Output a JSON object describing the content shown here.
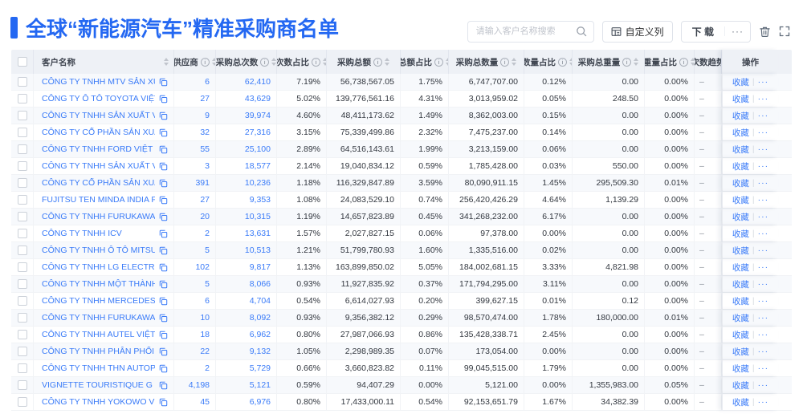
{
  "page": {
    "title": "全球“新能源汽车”精准采购商名单"
  },
  "toolbar": {
    "search_placeholder": "请输入客户名称搜索",
    "customize_columns": "自定义列",
    "download": "下 载",
    "more": "···",
    "icons": [
      "search-icon",
      "customize-columns-icon",
      "download-more-icon",
      "trash-icon",
      "fullscreen-icon"
    ]
  },
  "colors": {
    "accent": "#2468f2",
    "link": "#3a7bf8",
    "header_bg": "#eef1f6",
    "stripe": "#f7f9fc"
  },
  "table": {
    "columns": [
      {
        "key": "name",
        "label": "客户名称",
        "info": false,
        "sortable": true
      },
      {
        "key": "supplier",
        "label": "供应商",
        "info": true,
        "sortable": true
      },
      {
        "key": "times",
        "label": "采购总次数",
        "info": true,
        "sortable": true
      },
      {
        "key": "times_pct",
        "label": "次数占比",
        "info": true,
        "sortable": true
      },
      {
        "key": "amount",
        "label": "采购总额",
        "info": true,
        "sortable": true
      },
      {
        "key": "amount_pct",
        "label": "总额占比",
        "info": true,
        "sortable": true
      },
      {
        "key": "qty",
        "label": "采购总数量",
        "info": true,
        "sortable": true
      },
      {
        "key": "qty_pct",
        "label": "数量占比",
        "info": true,
        "sortable": true
      },
      {
        "key": "weight",
        "label": "采购总重量",
        "info": true,
        "sortable": true
      },
      {
        "key": "weight_pct",
        "label": "重量占比",
        "info": true,
        "sortable": true
      },
      {
        "key": "trend",
        "label": "次数趋势",
        "info": false,
        "sortable": false
      },
      {
        "key": "actions",
        "label": "操作",
        "info": false,
        "sortable": false
      }
    ],
    "trend_placeholder": "–",
    "actions": {
      "favorite": "收藏",
      "more": "···"
    },
    "rows": [
      {
        "name": "CÔNG TY TNHH MTV SẢN XUẤ...",
        "supplier": "6",
        "times": "62,410",
        "times_pct": "7.19%",
        "amount": "56,738,567.05",
        "amount_pct": "1.75%",
        "qty": "6,747,707.00",
        "qty_pct": "0.12%",
        "weight": "0.00",
        "weight_pct": "0.00%"
      },
      {
        "name": "CÔNG TY Ô TÔ TOYOTA VIỆT ...",
        "supplier": "27",
        "times": "43,629",
        "times_pct": "5.02%",
        "amount": "139,776,561.16",
        "amount_pct": "4.31%",
        "qty": "3,013,959.02",
        "qty_pct": "0.05%",
        "weight": "248.50",
        "weight_pct": "0.00%"
      },
      {
        "name": "CÔNG TY TNHH SẢN XUẤT VÀ ...",
        "supplier": "9",
        "times": "39,974",
        "times_pct": "4.60%",
        "amount": "48,411,173.62",
        "amount_pct": "1.49%",
        "qty": "8,362,003.00",
        "qty_pct": "0.15%",
        "weight": "0.00",
        "weight_pct": "0.00%"
      },
      {
        "name": "CÔNG TY CỔ PHẦN SẢN XUẤT...",
        "supplier": "32",
        "times": "27,316",
        "times_pct": "3.15%",
        "amount": "75,339,499.86",
        "amount_pct": "2.32%",
        "qty": "7,475,237.00",
        "qty_pct": "0.14%",
        "weight": "0.00",
        "weight_pct": "0.00%"
      },
      {
        "name": "CÔNG TY TNHH FORD VIỆT NAM",
        "supplier": "55",
        "times": "25,100",
        "times_pct": "2.89%",
        "amount": "64,516,143.61",
        "amount_pct": "1.99%",
        "qty": "3,213,159.00",
        "qty_pct": "0.06%",
        "weight": "0.00",
        "weight_pct": "0.00%"
      },
      {
        "name": "CÔNG TY TNHH SẢN XUẤT VÀ ...",
        "supplier": "3",
        "times": "18,577",
        "times_pct": "2.14%",
        "amount": "19,040,834.12",
        "amount_pct": "0.59%",
        "qty": "1,785,428.00",
        "qty_pct": "0.03%",
        "weight": "550.00",
        "weight_pct": "0.00%"
      },
      {
        "name": "CÔNG TY CỔ PHẦN SẢN XUẤT...",
        "supplier": "391",
        "times": "10,236",
        "times_pct": "1.18%",
        "amount": "116,329,847.89",
        "amount_pct": "3.59%",
        "qty": "80,090,911.15",
        "qty_pct": "1.45%",
        "weight": "295,509.30",
        "weight_pct": "0.01%"
      },
      {
        "name": "FUJITSU TEN MINDA INDIA PVT...",
        "supplier": "27",
        "times": "9,353",
        "times_pct": "1.08%",
        "amount": "24,083,529.10",
        "amount_pct": "0.74%",
        "qty": "256,420,426.29",
        "qty_pct": "4.64%",
        "weight": "1,139.29",
        "weight_pct": "0.00%"
      },
      {
        "name": "CÔNG TY TNHH FURUKAWA A...",
        "supplier": "20",
        "times": "10,315",
        "times_pct": "1.19%",
        "amount": "14,657,823.89",
        "amount_pct": "0.45%",
        "qty": "341,268,232.00",
        "qty_pct": "6.17%",
        "weight": "0.00",
        "weight_pct": "0.00%"
      },
      {
        "name": "CÔNG TY TNHH ICV",
        "supplier": "2",
        "times": "13,631",
        "times_pct": "1.57%",
        "amount": "2,027,827.15",
        "amount_pct": "0.06%",
        "qty": "97,378.00",
        "qty_pct": "0.00%",
        "weight": "0.00",
        "weight_pct": "0.00%"
      },
      {
        "name": "CÔNG TY TNHH Ô TÔ MITSUBI...",
        "supplier": "5",
        "times": "10,513",
        "times_pct": "1.21%",
        "amount": "51,799,780.93",
        "amount_pct": "1.60%",
        "qty": "1,335,516.00",
        "qty_pct": "0.02%",
        "weight": "0.00",
        "weight_pct": "0.00%"
      },
      {
        "name": "CÔNG TY TNHH LG ELECTRON...",
        "supplier": "102",
        "times": "9,817",
        "times_pct": "1.13%",
        "amount": "163,899,850.02",
        "amount_pct": "5.05%",
        "qty": "184,002,681.15",
        "qty_pct": "3.33%",
        "weight": "4,821.98",
        "weight_pct": "0.00%"
      },
      {
        "name": "CÔNG TY TNHH MỘT THÀNH V...",
        "supplier": "5",
        "times": "8,066",
        "times_pct": "0.93%",
        "amount": "11,927,835.92",
        "amount_pct": "0.37%",
        "qty": "171,794,295.00",
        "qty_pct": "3.11%",
        "weight": "0.00",
        "weight_pct": "0.00%"
      },
      {
        "name": "CÔNG TY TNHH MERCEDES-B...",
        "supplier": "6",
        "times": "4,704",
        "times_pct": "0.54%",
        "amount": "6,614,027.93",
        "amount_pct": "0.20%",
        "qty": "399,627.15",
        "qty_pct": "0.01%",
        "weight": "0.12",
        "weight_pct": "0.00%"
      },
      {
        "name": "CÔNG TY TNHH FURUKAWA A...",
        "supplier": "10",
        "times": "8,092",
        "times_pct": "0.93%",
        "amount": "9,356,382.12",
        "amount_pct": "0.29%",
        "qty": "98,570,474.00",
        "qty_pct": "1.78%",
        "weight": "180,000.00",
        "weight_pct": "0.01%"
      },
      {
        "name": "CÔNG TY TNHH AUTEL VIỆT N...",
        "supplier": "18",
        "times": "6,962",
        "times_pct": "0.80%",
        "amount": "27,987,066.93",
        "amount_pct": "0.86%",
        "qty": "135,428,338.71",
        "qty_pct": "2.45%",
        "weight": "0.00",
        "weight_pct": "0.00%"
      },
      {
        "name": "CÔNG TY TNHH PHÂN PHỐI T...",
        "supplier": "22",
        "times": "9,132",
        "times_pct": "1.05%",
        "amount": "2,298,989.35",
        "amount_pct": "0.07%",
        "qty": "173,054.00",
        "qty_pct": "0.00%",
        "weight": "0.00",
        "weight_pct": "0.00%"
      },
      {
        "name": "CÔNG TY TNHH THN AUTOPAR...",
        "supplier": "2",
        "times": "5,729",
        "times_pct": "0.66%",
        "amount": "3,660,823.82",
        "amount_pct": "0.11%",
        "qty": "99,045,515.00",
        "qty_pct": "1.79%",
        "weight": "0.00",
        "weight_pct": "0.00%"
      },
      {
        "name": "VIGNETTE TOURISTIQUE G UNI...",
        "supplier": "4,198",
        "times": "5,121",
        "times_pct": "0.59%",
        "amount": "94,407.29",
        "amount_pct": "0.00%",
        "qty": "5,121.00",
        "qty_pct": "0.00%",
        "weight": "1,355,983.00",
        "weight_pct": "0.05%"
      },
      {
        "name": "CÔNG TY TNHH YOKOWO VIỆT...",
        "supplier": "45",
        "times": "6,976",
        "times_pct": "0.80%",
        "amount": "17,433,000.11",
        "amount_pct": "0.54%",
        "qty": "92,153,651.79",
        "qty_pct": "1.67%",
        "weight": "34,382.39",
        "weight_pct": "0.00%"
      }
    ]
  }
}
